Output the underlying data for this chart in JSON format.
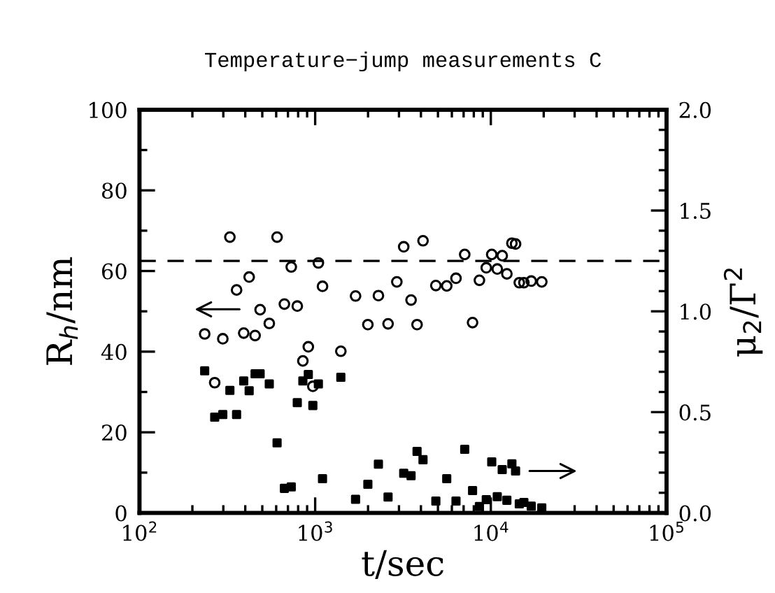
{
  "chart_data": {
    "type": "scatter",
    "title": "Temperature−jump measurements C",
    "xlabel": "t/sec",
    "ylabel": "R$_{h}$/nm",
    "y2label": "μ$_{2}$/Γ$^{2}$",
    "log": "x",
    "xlim": [
      100,
      100000
    ],
    "xticks": [
      {
        "value": 100,
        "label": "10$^{2}$"
      },
      {
        "value": 1000,
        "label": "10$^{3}$"
      },
      {
        "value": 10000,
        "label": "10$^{4}$"
      },
      {
        "value": 100000,
        "label": "10$^{5}$"
      }
    ],
    "ylim": [
      0,
      100
    ],
    "yticks": [
      0,
      20,
      40,
      60,
      80,
      100
    ],
    "y2lim": [
      0,
      2.0
    ],
    "y2ticks": [
      {
        "value": 0,
        "label": "0.0"
      },
      0.5,
      {
        "value": 1,
        "label": "1.0"
      },
      1.5,
      {
        "value": 2,
        "label": "2.0"
      }
    ],
    "grid": false,
    "legend": false,
    "series": [
      {
        "color": "#000000",
        "marker": "circle",
        "x": [
          235,
          268,
          298,
          327,
          357,
          392,
          421,
          455,
          486,
          548,
          607,
          668,
          731,
          791,
          851,
          914,
          970,
          1043,
          1101,
          1400,
          1698,
          1995,
          2291,
          2600,
          2917,
          3192,
          3515,
          3802,
          4111,
          4864,
          5610,
          6334,
          7101,
          7870,
          8610,
          9420,
          10120,
          10880,
          11610,
          12340,
          13180,
          13830,
          14520,
          15420,
          16980,
          19500
        ],
        "values": [
          44.4,
          32.3,
          43.2,
          68.4,
          55.3,
          44.6,
          58.5,
          44.0,
          50.4,
          47.0,
          68.4,
          51.8,
          61.0,
          51.3,
          37.7,
          41.2,
          31.4,
          62.0,
          56.2,
          40.1,
          53.8,
          46.7,
          53.9,
          46.9,
          57.3,
          66.0,
          52.8,
          46.7,
          67.5,
          56.4,
          56.3,
          58.2,
          64.1,
          47.2,
          57.7,
          60.8,
          64.1,
          60.5,
          63.8,
          59.3,
          66.9,
          66.7,
          57.1,
          57.1,
          57.5,
          57.3
        ]
      },
      {
        "color": "#000000",
        "marker": "square",
        "axis": "y2",
        "x": [
          235,
          268,
          298,
          327,
          357,
          392,
          421,
          455,
          486,
          548,
          607,
          668,
          731,
          791,
          851,
          914,
          970,
          1043,
          1101,
          1400,
          1698,
          1995,
          2291,
          2600,
          3192,
          3515,
          3802,
          4111,
          4864,
          5610,
          6334,
          7101,
          7870,
          8610,
          9420,
          10120,
          10880,
          11610,
          12340,
          13180,
          13830,
          14520,
          15420,
          16980,
          19500
        ],
        "values": [
          0.705,
          0.475,
          0.488,
          0.608,
          0.488,
          0.655,
          0.606,
          0.69,
          0.69,
          0.64,
          0.348,
          0.122,
          0.129,
          0.547,
          0.655,
          0.687,
          0.533,
          0.64,
          0.17,
          0.673,
          0.068,
          0.142,
          0.242,
          0.079,
          0.197,
          0.185,
          0.305,
          0.264,
          0.059,
          0.17,
          0.059,
          0.316,
          0.111,
          0.032,
          0.066,
          0.253,
          0.081,
          0.215,
          0.063,
          0.244,
          0.208,
          0.045,
          0.052,
          0.034,
          0.025
        ]
      }
    ],
    "ref_lines": [
      {
        "axis": "y",
        "value": 62.5,
        "color": "#000000",
        "line_style": "dashed"
      }
    ]
  }
}
